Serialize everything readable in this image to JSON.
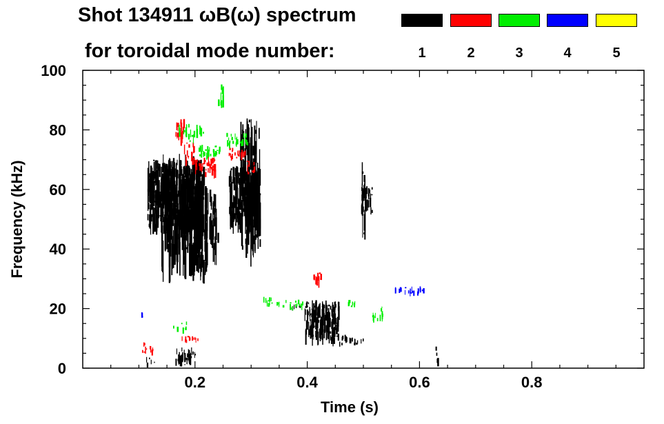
{
  "chart_data": {
    "type": "scatter",
    "title": "Shot 134911 ωB(ω) spectrum",
    "subtitle": "for toroidal mode number:",
    "xlabel": "Time (s)",
    "ylabel": "Frequency (kHz)",
    "xlim": [
      0.0,
      1.0
    ],
    "ylim": [
      0,
      100
    ],
    "x_ticks": [
      0.2,
      0.4,
      0.6,
      0.8
    ],
    "x_tick_labels": [
      "0.2",
      "0.4",
      "0.6",
      "0.8"
    ],
    "y_ticks": [
      0,
      20,
      40,
      60,
      80,
      100
    ],
    "y_tick_labels": [
      "0",
      "20",
      "40",
      "60",
      "80",
      "100"
    ],
    "grid": false,
    "legend": {
      "placement": "top-right",
      "entries": [
        {
          "label": "1",
          "color": "#000000"
        },
        {
          "label": "2",
          "color": "#ff0000"
        },
        {
          "label": "3",
          "color": "#00ee00"
        },
        {
          "label": "4",
          "color": "#0000ff"
        },
        {
          "label": "5",
          "color": "#ffff00"
        }
      ]
    },
    "series": [
      {
        "name": "1",
        "color": "#000000",
        "regions": [
          {
            "t0": 0.115,
            "t1": 0.215,
            "f0": 47,
            "f1": 70,
            "density": 1.0
          },
          {
            "t0": 0.14,
            "t1": 0.21,
            "f0": 35,
            "f1": 72,
            "density": 0.4
          },
          {
            "t0": 0.19,
            "t1": 0.22,
            "f0": 32,
            "f1": 62,
            "density": 0.6
          },
          {
            "t0": 0.22,
            "t1": 0.24,
            "f0": 38,
            "f1": 60,
            "density": 0.35
          },
          {
            "t0": 0.26,
            "t1": 0.315,
            "f0": 48,
            "f1": 68,
            "density": 1.0
          },
          {
            "t0": 0.28,
            "t1": 0.315,
            "f0": 40,
            "f1": 85,
            "density": 0.35
          },
          {
            "t0": 0.165,
            "t1": 0.2,
            "f0": 1,
            "f1": 7,
            "density": 0.9
          },
          {
            "t0": 0.11,
            "t1": 0.13,
            "f0": 1,
            "f1": 4,
            "density": 0.4
          },
          {
            "t0": 0.395,
            "t1": 0.455,
            "f0": 10,
            "f1": 23,
            "density": 1.0
          },
          {
            "t0": 0.44,
            "t1": 0.48,
            "f0": 8,
            "f1": 12,
            "density": 0.6
          },
          {
            "t0": 0.48,
            "t1": 0.5,
            "f0": 8,
            "f1": 10,
            "density": 0.9
          },
          {
            "t0": 0.37,
            "t1": 0.4,
            "f0": 20,
            "f1": 22,
            "density": 0.5
          },
          {
            "t0": 0.495,
            "t1": 0.515,
            "f0": 52,
            "f1": 62,
            "density": 0.9
          },
          {
            "t0": 0.497,
            "t1": 0.502,
            "f0": 44,
            "f1": 70,
            "density": 0.4
          },
          {
            "t0": 0.628,
            "t1": 0.632,
            "f0": 1,
            "f1": 9,
            "density": 0.5
          }
        ]
      },
      {
        "name": "2",
        "color": "#ff0000",
        "regions": [
          {
            "t0": 0.165,
            "t1": 0.18,
            "f0": 76,
            "f1": 84,
            "density": 0.9
          },
          {
            "t0": 0.18,
            "t1": 0.2,
            "f0": 69,
            "f1": 76,
            "density": 0.6
          },
          {
            "t0": 0.2,
            "t1": 0.235,
            "f0": 65,
            "f1": 71,
            "density": 0.9
          },
          {
            "t0": 0.26,
            "t1": 0.29,
            "f0": 70,
            "f1": 74,
            "density": 0.8
          },
          {
            "t0": 0.29,
            "t1": 0.305,
            "f0": 65,
            "f1": 70,
            "density": 0.5
          },
          {
            "t0": 0.175,
            "t1": 0.21,
            "f0": 9,
            "f1": 11,
            "density": 0.9
          },
          {
            "t0": 0.1,
            "t1": 0.125,
            "f0": 5,
            "f1": 9,
            "density": 0.5
          },
          {
            "t0": 0.41,
            "t1": 0.425,
            "f0": 28,
            "f1": 33,
            "density": 0.8
          }
        ]
      },
      {
        "name": "3",
        "color": "#00ee00",
        "regions": [
          {
            "t0": 0.205,
            "t1": 0.245,
            "f0": 71,
            "f1": 75,
            "density": 0.9
          },
          {
            "t0": 0.255,
            "t1": 0.295,
            "f0": 75,
            "f1": 79,
            "density": 0.8
          },
          {
            "t0": 0.17,
            "t1": 0.215,
            "f0": 76,
            "f1": 82,
            "density": 0.4
          },
          {
            "t0": 0.24,
            "t1": 0.25,
            "f0": 88,
            "f1": 100,
            "density": 0.3
          },
          {
            "t0": 0.32,
            "t1": 0.35,
            "f0": 21,
            "f1": 24,
            "density": 0.7
          },
          {
            "t0": 0.35,
            "t1": 0.4,
            "f0": 20,
            "f1": 23,
            "density": 0.5
          },
          {
            "t0": 0.47,
            "t1": 0.485,
            "f0": 20,
            "f1": 23,
            "density": 0.7
          },
          {
            "t0": 0.515,
            "t1": 0.535,
            "f0": 16,
            "f1": 21,
            "density": 0.6
          },
          {
            "t0": 0.16,
            "t1": 0.19,
            "f0": 12,
            "f1": 16,
            "density": 0.3
          }
        ]
      },
      {
        "name": "4",
        "color": "#0000ff",
        "regions": [
          {
            "t0": 0.555,
            "t1": 0.61,
            "f0": 25,
            "f1": 27.5,
            "density": 0.8
          },
          {
            "t0": 0.102,
            "t1": 0.106,
            "f0": 17,
            "f1": 19,
            "density": 0.8
          }
        ]
      },
      {
        "name": "5",
        "color": "#ffff00",
        "regions": []
      }
    ]
  }
}
